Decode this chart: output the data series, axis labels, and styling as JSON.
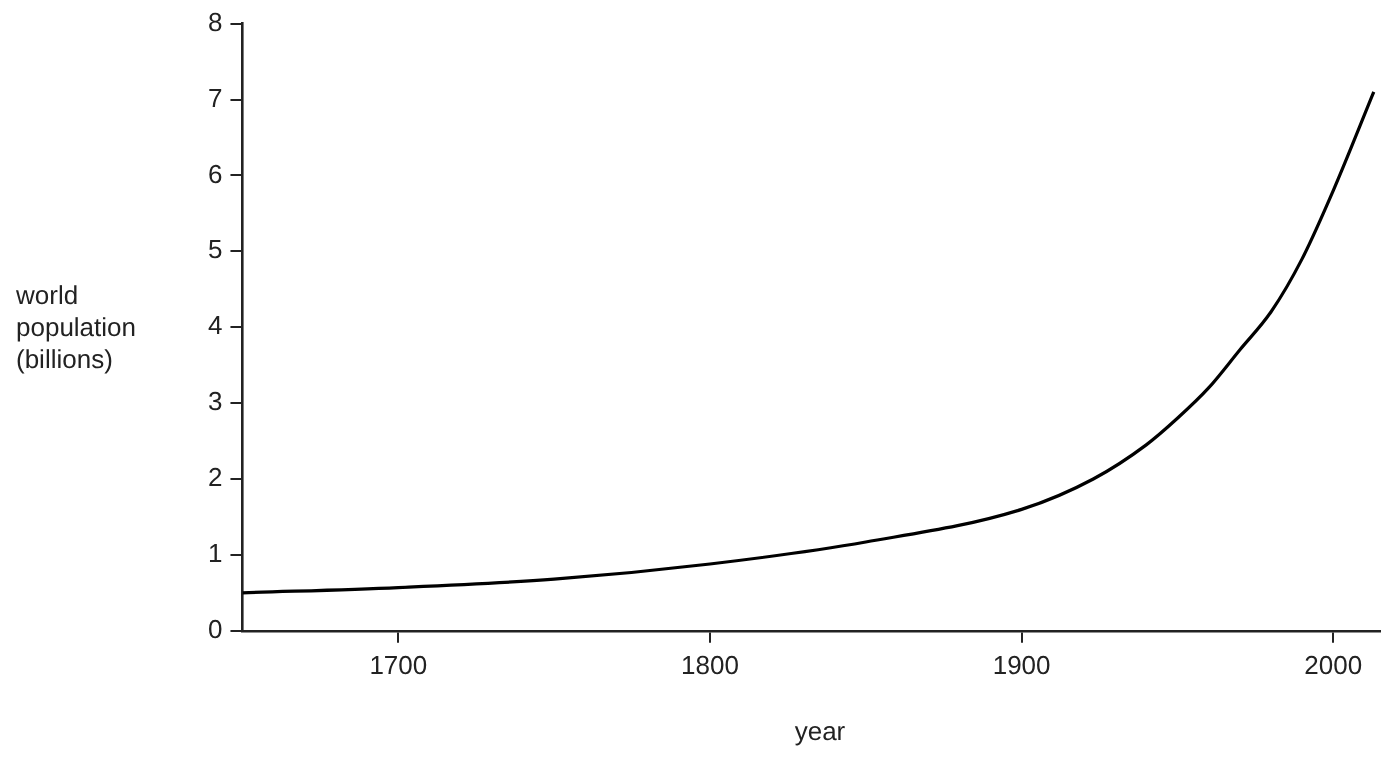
{
  "chart_data": {
    "type": "line",
    "xlabel": "year",
    "ylabel": "world population (billions)",
    "series": [
      {
        "color": "#000000",
        "x": [
          1650,
          1700,
          1750,
          1800,
          1850,
          1900,
          1923,
          1940,
          1950,
          1960,
          1970,
          1980,
          1990,
          2000,
          2013
        ],
        "values": [
          0.5,
          0.57,
          0.68,
          0.88,
          1.17,
          1.6,
          2.0,
          2.45,
          2.8,
          3.2,
          3.7,
          4.2,
          4.9,
          5.8,
          7.1
        ]
      }
    ],
    "xlim": [
      1650,
      2015
    ],
    "xticks": [
      1700,
      1800,
      1900,
      2000
    ],
    "ylim": [
      0,
      8
    ],
    "yticks": [
      0,
      1,
      2,
      3,
      4,
      5,
      6,
      7,
      8
    ],
    "grid": false,
    "legend": false,
    "marker": "none",
    "line_style": "solid"
  }
}
